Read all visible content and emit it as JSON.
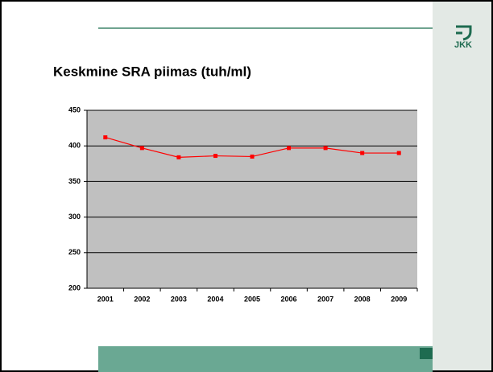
{
  "logo_text": "JKK",
  "chart_data": {
    "type": "line",
    "title": "Keskmine SRA piimas (tuh/ml)",
    "categories": [
      "2001",
      "2002",
      "2003",
      "2004",
      "2005",
      "2006",
      "2007",
      "2008",
      "2009"
    ],
    "series": [
      {
        "name": "SRA",
        "color": "#ff0000",
        "values": [
          412,
          397,
          384,
          386,
          385,
          397,
          397,
          390,
          390
        ]
      }
    ],
    "ylim": [
      200,
      450
    ],
    "yticks": [
      200,
      250,
      300,
      350,
      400,
      450
    ],
    "grid": true
  }
}
